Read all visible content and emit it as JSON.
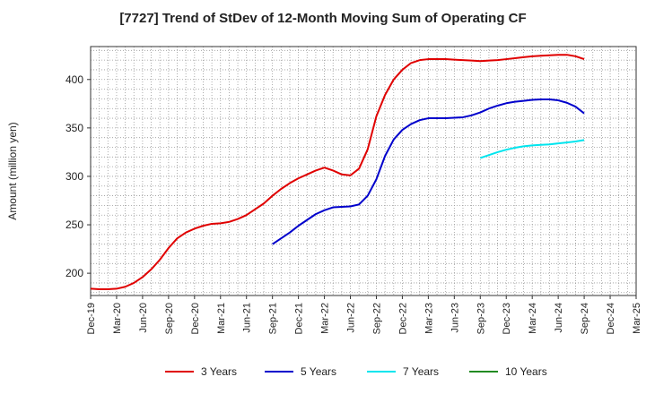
{
  "chart_data": {
    "type": "line",
    "title": "[7727]  Trend of StDev of 12-Month Moving Sum of Operating CF",
    "ylabel": "Amount (million yen)",
    "xlabel": "",
    "ylim": [
      177,
      434
    ],
    "yticks": [
      200,
      250,
      300,
      350,
      400
    ],
    "grid": true,
    "legend_position": "bottom",
    "x_tick_labels": [
      "Dec-19",
      "Mar-20",
      "Jun-20",
      "Sep-20",
      "Dec-20",
      "Mar-21",
      "Jun-21",
      "Sep-21",
      "Dec-21",
      "Mar-22",
      "Jun-22",
      "Sep-22",
      "Dec-22",
      "Mar-23",
      "Jun-23",
      "Sep-23",
      "Dec-23",
      "Mar-24",
      "Jun-24",
      "Sep-24",
      "Dec-24",
      "Mar-25"
    ],
    "series": [
      {
        "name": "3 Years",
        "color": "#e00000",
        "points": [
          [
            "Dec-19",
            184
          ],
          [
            "Jan-20",
            183.5
          ],
          [
            "Feb-20",
            183.5
          ],
          [
            "Mar-20",
            184
          ],
          [
            "Apr-20",
            186
          ],
          [
            "May-20",
            190
          ],
          [
            "Jun-20",
            196
          ],
          [
            "Jul-20",
            204
          ],
          [
            "Aug-20",
            214
          ],
          [
            "Sep-20",
            226
          ],
          [
            "Oct-20",
            236
          ],
          [
            "Nov-20",
            242
          ],
          [
            "Dec-20",
            246
          ],
          [
            "Jan-21",
            249
          ],
          [
            "Feb-21",
            251
          ],
          [
            "Mar-21",
            251.5
          ],
          [
            "Apr-21",
            253
          ],
          [
            "May-21",
            256
          ],
          [
            "Jun-21",
            260
          ],
          [
            "Jul-21",
            266
          ],
          [
            "Aug-21",
            272
          ],
          [
            "Sep-21",
            280
          ],
          [
            "Oct-21",
            287
          ],
          [
            "Nov-21",
            293
          ],
          [
            "Dec-21",
            298
          ],
          [
            "Jan-22",
            302
          ],
          [
            "Feb-22",
            306
          ],
          [
            "Mar-22",
            309
          ],
          [
            "Apr-22",
            306
          ],
          [
            "May-22",
            302
          ],
          [
            "Jun-22",
            301
          ],
          [
            "Jul-22",
            308
          ],
          [
            "Aug-22",
            328
          ],
          [
            "Sep-22",
            362
          ],
          [
            "Oct-22",
            384
          ],
          [
            "Nov-22",
            400
          ],
          [
            "Dec-22",
            410
          ],
          [
            "Jan-23",
            417
          ],
          [
            "Feb-23",
            420
          ],
          [
            "Mar-23",
            421
          ],
          [
            "Apr-23",
            421
          ],
          [
            "May-23",
            421
          ],
          [
            "Jun-23",
            420.5
          ],
          [
            "Jul-23",
            420
          ],
          [
            "Aug-23",
            419.5
          ],
          [
            "Sep-23",
            419
          ],
          [
            "Oct-23",
            419.5
          ],
          [
            "Nov-23",
            420
          ],
          [
            "Dec-23",
            421
          ],
          [
            "Jan-24",
            422
          ],
          [
            "Feb-24",
            423
          ],
          [
            "Mar-24",
            424
          ],
          [
            "Apr-24",
            424.5
          ],
          [
            "May-24",
            425
          ],
          [
            "Jun-24",
            425.5
          ],
          [
            "Jul-24",
            425.5
          ],
          [
            "Aug-24",
            424
          ],
          [
            "Sep-24",
            421
          ]
        ]
      },
      {
        "name": "5 Years",
        "color": "#0000cc",
        "points": [
          [
            "Sep-21",
            230
          ],
          [
            "Oct-21",
            236
          ],
          [
            "Nov-21",
            242
          ],
          [
            "Dec-21",
            249
          ],
          [
            "Jan-22",
            255
          ],
          [
            "Feb-22",
            261
          ],
          [
            "Mar-22",
            265
          ],
          [
            "Apr-22",
            268
          ],
          [
            "May-22",
            268.5
          ],
          [
            "Jun-22",
            269
          ],
          [
            "Jul-22",
            271
          ],
          [
            "Aug-22",
            280
          ],
          [
            "Sep-22",
            297
          ],
          [
            "Oct-22",
            321
          ],
          [
            "Nov-22",
            338
          ],
          [
            "Dec-22",
            348
          ],
          [
            "Jan-23",
            354
          ],
          [
            "Feb-23",
            358
          ],
          [
            "Mar-23",
            360
          ],
          [
            "Apr-23",
            360
          ],
          [
            "May-23",
            360
          ],
          [
            "Jun-23",
            360.5
          ],
          [
            "Jul-23",
            361
          ],
          [
            "Aug-23",
            363
          ],
          [
            "Sep-23",
            366
          ],
          [
            "Oct-23",
            370
          ],
          [
            "Nov-23",
            373
          ],
          [
            "Dec-23",
            375.5
          ],
          [
            "Jan-24",
            377
          ],
          [
            "Feb-24",
            378
          ],
          [
            "Mar-24",
            379
          ],
          [
            "Apr-24",
            379.5
          ],
          [
            "May-24",
            379.5
          ],
          [
            "Jun-24",
            378.5
          ],
          [
            "Jul-24",
            376
          ],
          [
            "Aug-24",
            372
          ],
          [
            "Sep-24",
            365
          ]
        ]
      },
      {
        "name": "7 Years",
        "color": "#00e5ee",
        "points": [
          [
            "Sep-23",
            319
          ],
          [
            "Oct-23",
            322
          ],
          [
            "Nov-23",
            325
          ],
          [
            "Dec-23",
            327.5
          ],
          [
            "Jan-24",
            329.5
          ],
          [
            "Feb-24",
            331
          ],
          [
            "Mar-24",
            332
          ],
          [
            "Apr-24",
            332.5
          ],
          [
            "May-24",
            333
          ],
          [
            "Jun-24",
            334
          ],
          [
            "Jul-24",
            335
          ],
          [
            "Aug-24",
            336
          ],
          [
            "Sep-24",
            337.5
          ]
        ]
      },
      {
        "name": "10 Years",
        "color": "#228b22",
        "points": []
      }
    ]
  }
}
